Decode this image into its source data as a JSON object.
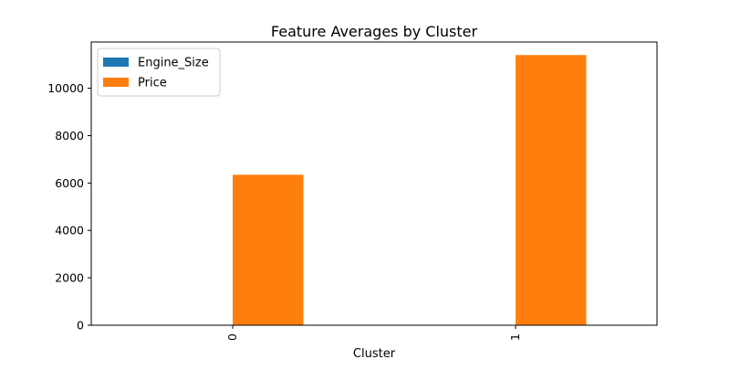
{
  "chart_data": {
    "type": "bar",
    "title": "Feature Averages by Cluster",
    "xlabel": "Cluster",
    "ylabel": "",
    "categories": [
      "0",
      "1"
    ],
    "series": [
      {
        "name": "Engine_Size",
        "color": "#1f77b4",
        "values": [
          2.2,
          3.1
        ]
      },
      {
        "name": "Price",
        "color": "#ff7f0e",
        "values": [
          6350,
          11400
        ]
      }
    ],
    "ylim": [
      0,
      11950
    ],
    "yticks": [
      0,
      2000,
      4000,
      6000,
      8000,
      10000
    ],
    "legend_position": "top-left",
    "grid": false
  }
}
